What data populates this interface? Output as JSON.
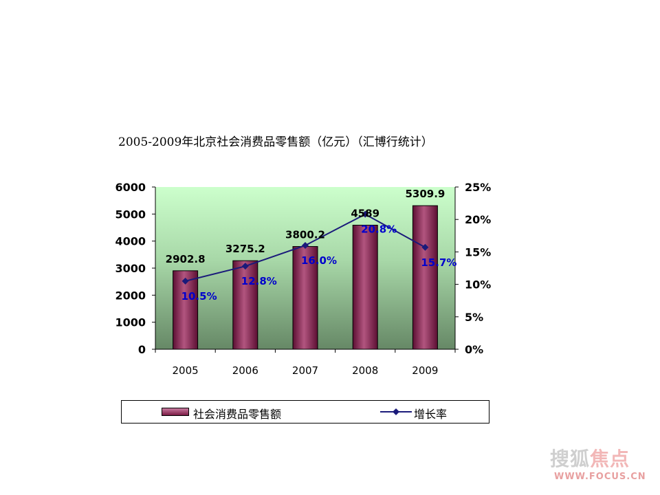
{
  "chart_data": {
    "type": "bar",
    "title": "2005-2009年北京社会消费品零售额（亿元）（汇博行统计）",
    "categories": [
      "2005",
      "2006",
      "2007",
      "2008",
      "2009"
    ],
    "series": [
      {
        "name": "社会消费品零售额",
        "type": "bar",
        "axis": "left",
        "values": [
          2902.8,
          3275.2,
          3800.2,
          4589,
          5309.9
        ],
        "labels": [
          "2902.8",
          "3275.2",
          "3800.2",
          "4589",
          "5309.9"
        ]
      },
      {
        "name": "增长率",
        "type": "line",
        "axis": "right",
        "values": [
          10.5,
          12.8,
          16.0,
          20.8,
          15.7
        ],
        "labels": [
          "10.5%",
          "12.8%",
          "16.0%",
          "20.8%",
          "15.7%"
        ]
      }
    ],
    "y_left": {
      "ylim": [
        0,
        6000
      ],
      "ticks": [
        "0",
        "1000",
        "2000",
        "3000",
        "4000",
        "5000",
        "6000"
      ]
    },
    "y_right": {
      "ylim": [
        0,
        25
      ],
      "ticks": [
        "0%",
        "5%",
        "10%",
        "15%",
        "20%",
        "25%"
      ]
    },
    "grid": false,
    "legend": "bottom",
    "colors": {
      "bar": "#8b2252",
      "line": "#1a1a7a",
      "line_label": "#0000cc",
      "plot_bg_top": "#ccffcc",
      "plot_bg_bottom": "#668866"
    }
  },
  "watermark": {
    "brand_gray": "搜狐",
    "brand_red": "焦点",
    "url": "WWW.FOCUS.CN"
  }
}
